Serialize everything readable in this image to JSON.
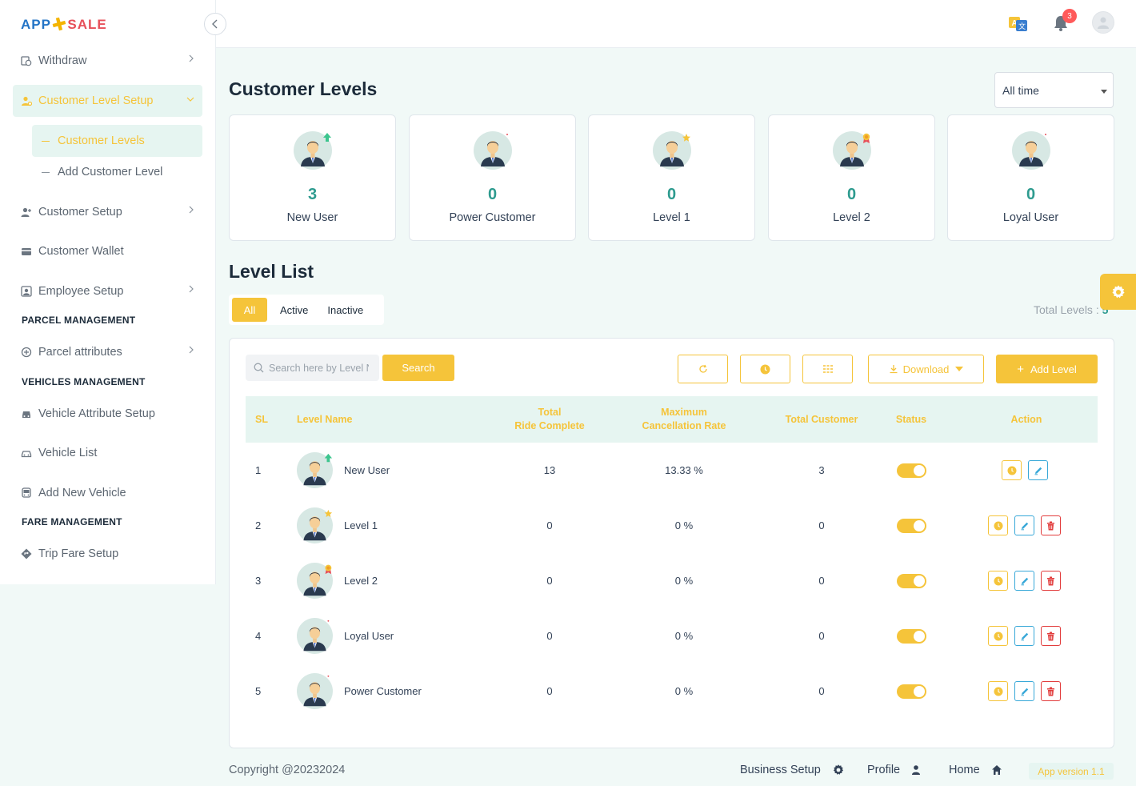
{
  "brand": {
    "part1": "APP",
    "part2": "SALE"
  },
  "sidebar": {
    "items": {
      "withdraw": "Withdraw",
      "customer_level_setup": "Customer Level Setup",
      "customer_levels": "Customer Levels",
      "add_customer_level": "Add Customer Level",
      "customer_setup": "Customer Setup",
      "customer_wallet": "Customer Wallet",
      "employee_setup": "Employee Setup",
      "parcel_attributes": "Parcel attributes",
      "vehicle_attribute_setup": "Vehicle Attribute Setup",
      "vehicle_list": "Vehicle List",
      "add_new_vehicle": "Add New Vehicle",
      "trip_fare_setup": "Trip Fare Setup"
    },
    "sections": {
      "parcel": "PARCEL MANAGEMENT",
      "vehicles": "VEHICLES MANAGEMENT",
      "fare": "FARE MANAGEMENT"
    }
  },
  "header": {
    "notification_count": "3"
  },
  "page": {
    "title": "Customer Levels",
    "time_filter": "All time"
  },
  "level_cards": [
    {
      "count": "3",
      "label": "New User",
      "badge": "arrow-up"
    },
    {
      "count": "0",
      "label": "Power Customer",
      "badge": "dot"
    },
    {
      "count": "0",
      "label": "Level 1",
      "badge": "star"
    },
    {
      "count": "0",
      "label": "Level 2",
      "badge": "medal"
    },
    {
      "count": "0",
      "label": "Loyal User",
      "badge": "dot"
    }
  ],
  "level_list": {
    "title": "Level List",
    "tabs": {
      "all": "All",
      "active": "Active",
      "inactive": "Inactive"
    },
    "total_label": "Total Levels :",
    "total_value": "5",
    "search_placeholder": "Search here by Level Name",
    "search_button": "Search",
    "download_button": "Download",
    "add_button": "Add Level",
    "columns": {
      "sl": "SL",
      "name": "Level Name",
      "ride_1": "Total",
      "ride_2": "Ride Complete",
      "cancel_1": "Maximum",
      "cancel_2": "Cancellation Rate",
      "customers": "Total Customer",
      "status": "Status",
      "action": "Action"
    },
    "rows": [
      {
        "sl": "1",
        "name": "New User",
        "rides": "13",
        "cancel": "13.33 %",
        "customers": "3",
        "status": "active",
        "badge": "arrow-up",
        "deletable": false
      },
      {
        "sl": "2",
        "name": "Level 1",
        "rides": "0",
        "cancel": "0 %",
        "customers": "0",
        "status": "active",
        "badge": "star",
        "deletable": true
      },
      {
        "sl": "3",
        "name": "Level 2",
        "rides": "0",
        "cancel": "0 %",
        "customers": "0",
        "status": "active",
        "badge": "medal",
        "deletable": true
      },
      {
        "sl": "4",
        "name": "Loyal User",
        "rides": "0",
        "cancel": "0 %",
        "customers": "0",
        "status": "active",
        "badge": "dot",
        "deletable": true
      },
      {
        "sl": "5",
        "name": "Power Customer",
        "rides": "0",
        "cancel": "0 %",
        "customers": "0",
        "status": "active",
        "badge": "dot",
        "deletable": true
      }
    ]
  },
  "footer": {
    "copyright": "Copyright @20232024",
    "business_setup": "Business Setup",
    "profile": "Profile",
    "home": "Home",
    "version": "App version  1.1"
  },
  "colors": {
    "accent": "#f5c43a",
    "teal": "#2e9b8f",
    "mint_bg": "#e6f5f1",
    "danger": "#e23d3d",
    "info": "#38a8d8"
  }
}
